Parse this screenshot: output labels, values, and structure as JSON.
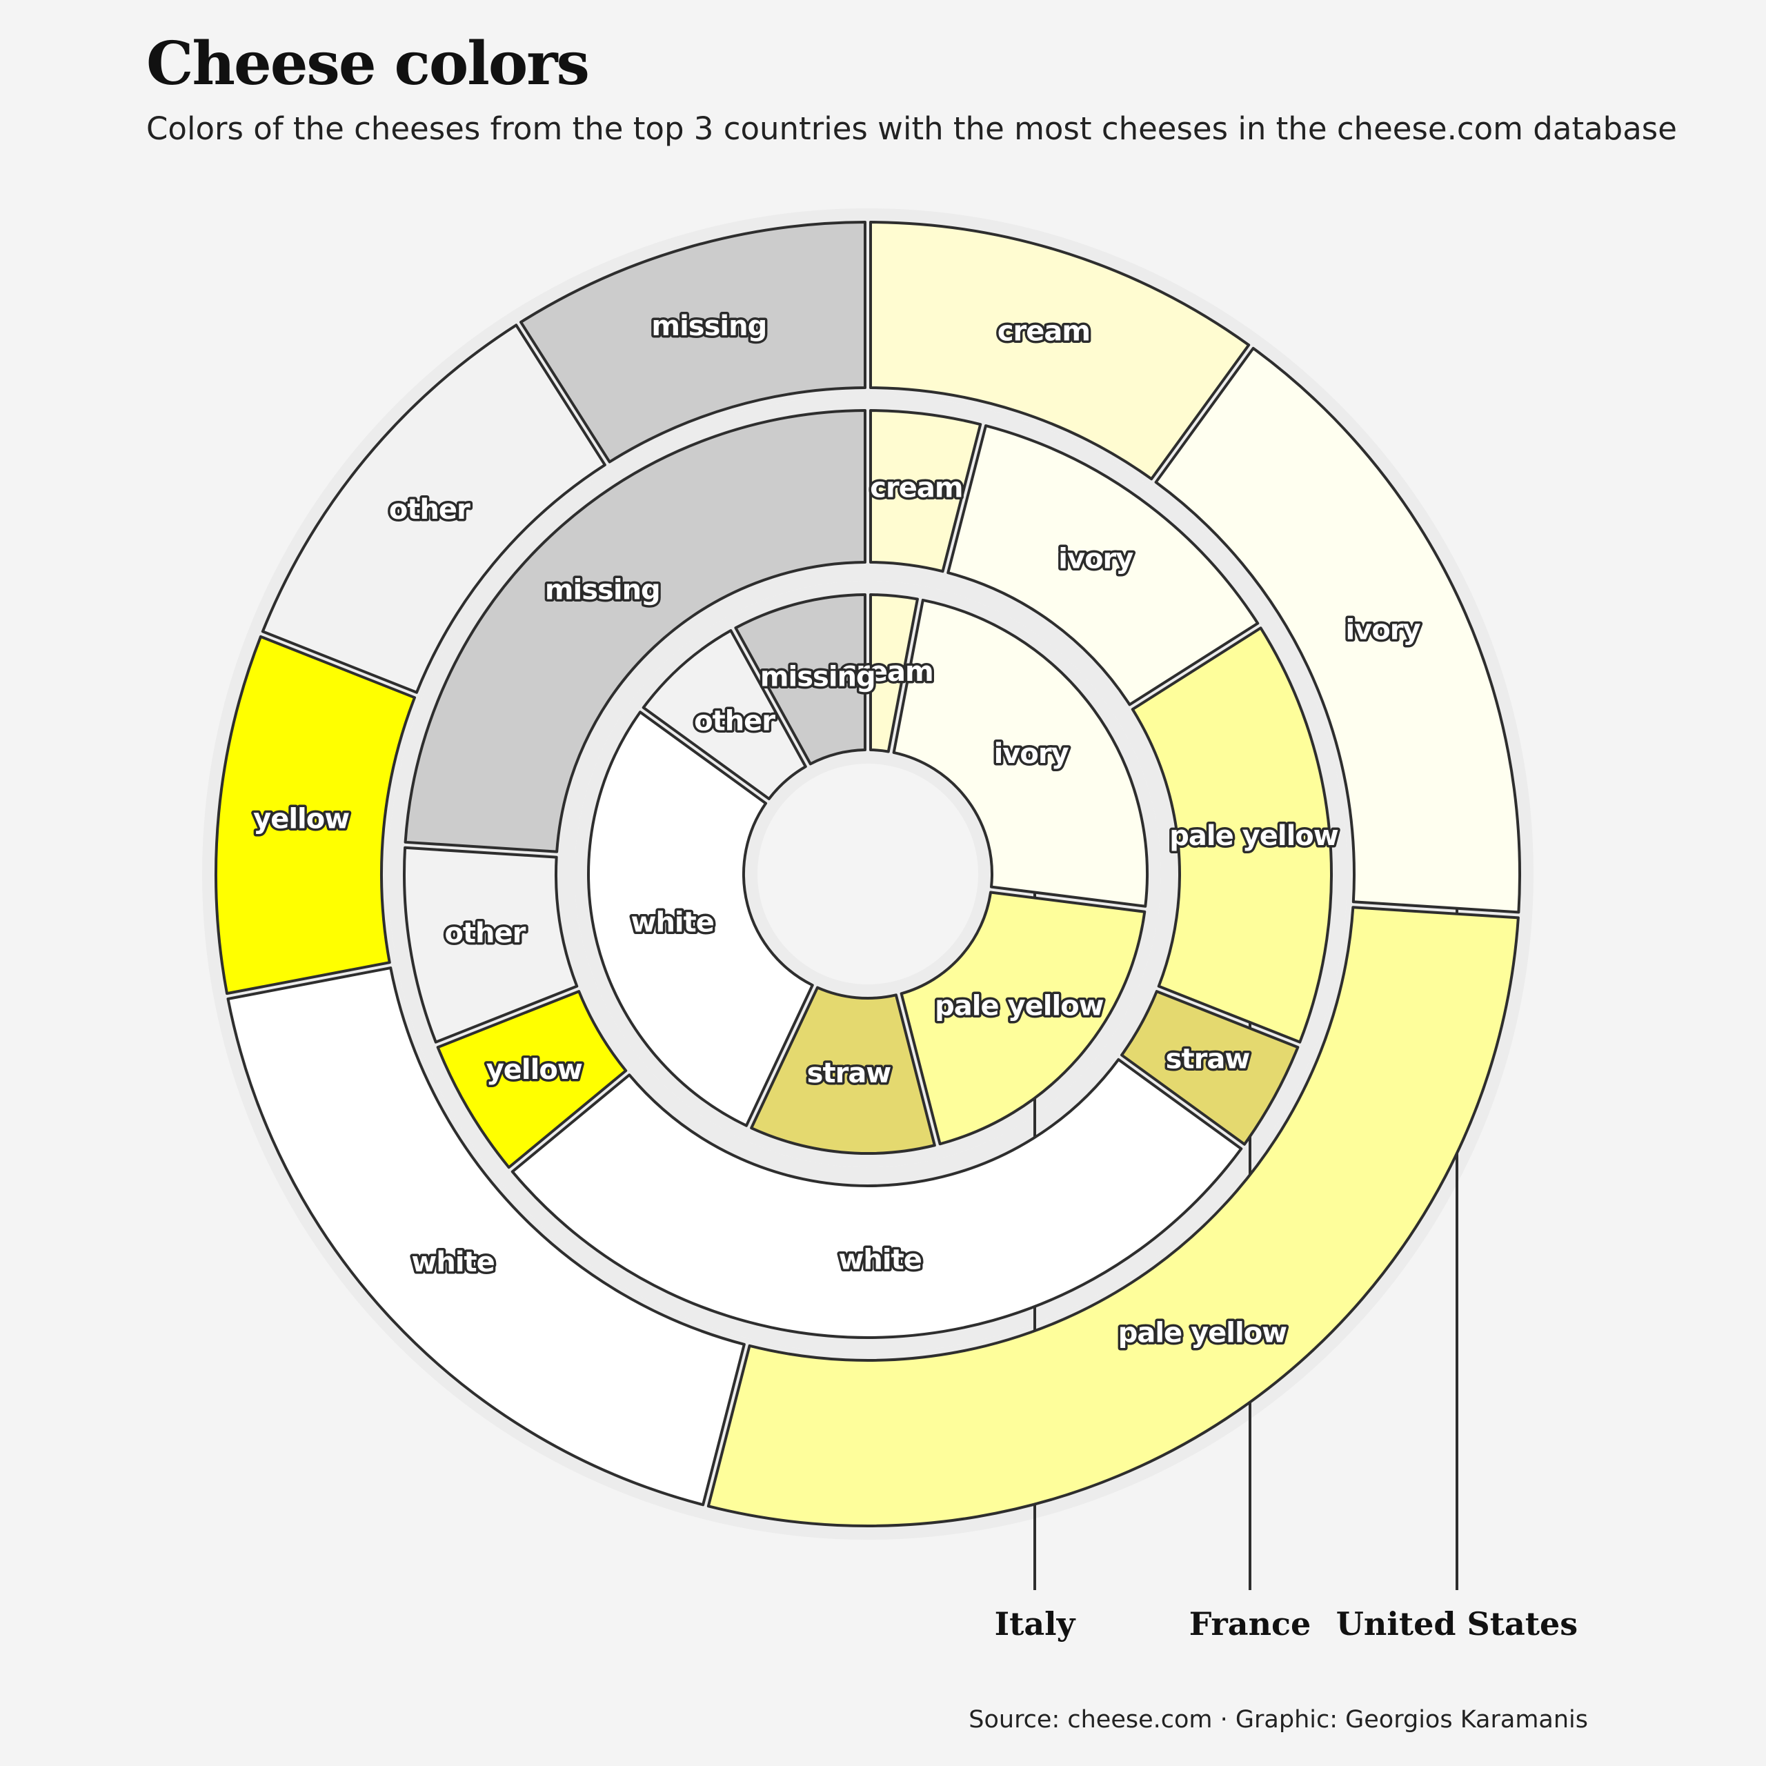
{
  "header": {
    "title": "Cheese colors",
    "subtitle": "Colors of the cheeses from the top 3 countries with the most cheeses in the cheese.com database"
  },
  "caption": "Source: cheese.com · Graphic: Georgios Karamanis",
  "colors": {
    "cream": "#fffcd1",
    "ivory": "#fffff0",
    "pale yellow": "#fefe9b",
    "straw": "#e4d96f",
    "white": "#ffffff",
    "yellow": "#ffff00",
    "other": "#f2f2f2",
    "missing": "#cccccc",
    "band": "#ececec",
    "outline": "#2e2e2e",
    "background": "#f4f4f4"
  },
  "chart_data": {
    "type": "donut",
    "rings": [
      {
        "country": "Italy",
        "segments": [
          {
            "color": "cream",
            "share": 0.03
          },
          {
            "color": "ivory",
            "share": 0.24
          },
          {
            "color": "pale yellow",
            "share": 0.19
          },
          {
            "color": "straw",
            "share": 0.11
          },
          {
            "color": "white",
            "share": 0.28
          },
          {
            "color": "other",
            "share": 0.07
          },
          {
            "color": "missing",
            "share": 0.08
          }
        ]
      },
      {
        "country": "France",
        "segments": [
          {
            "color": "cream",
            "share": 0.04
          },
          {
            "color": "ivory",
            "share": 0.12
          },
          {
            "color": "pale yellow",
            "share": 0.15
          },
          {
            "color": "straw",
            "share": 0.04
          },
          {
            "color": "white",
            "share": 0.29
          },
          {
            "color": "yellow",
            "share": 0.05
          },
          {
            "color": "other",
            "share": 0.07
          },
          {
            "color": "missing",
            "share": 0.24
          }
        ]
      },
      {
        "country": "United States",
        "segments": [
          {
            "color": "cream",
            "share": 0.1
          },
          {
            "color": "ivory",
            "share": 0.16
          },
          {
            "color": "pale yellow",
            "share": 0.28
          },
          {
            "color": "white",
            "share": 0.18
          },
          {
            "color": "yellow",
            "share": 0.09
          },
          {
            "color": "other",
            "share": 0.1
          },
          {
            "color": "missing",
            "share": 0.09
          }
        ]
      }
    ]
  }
}
